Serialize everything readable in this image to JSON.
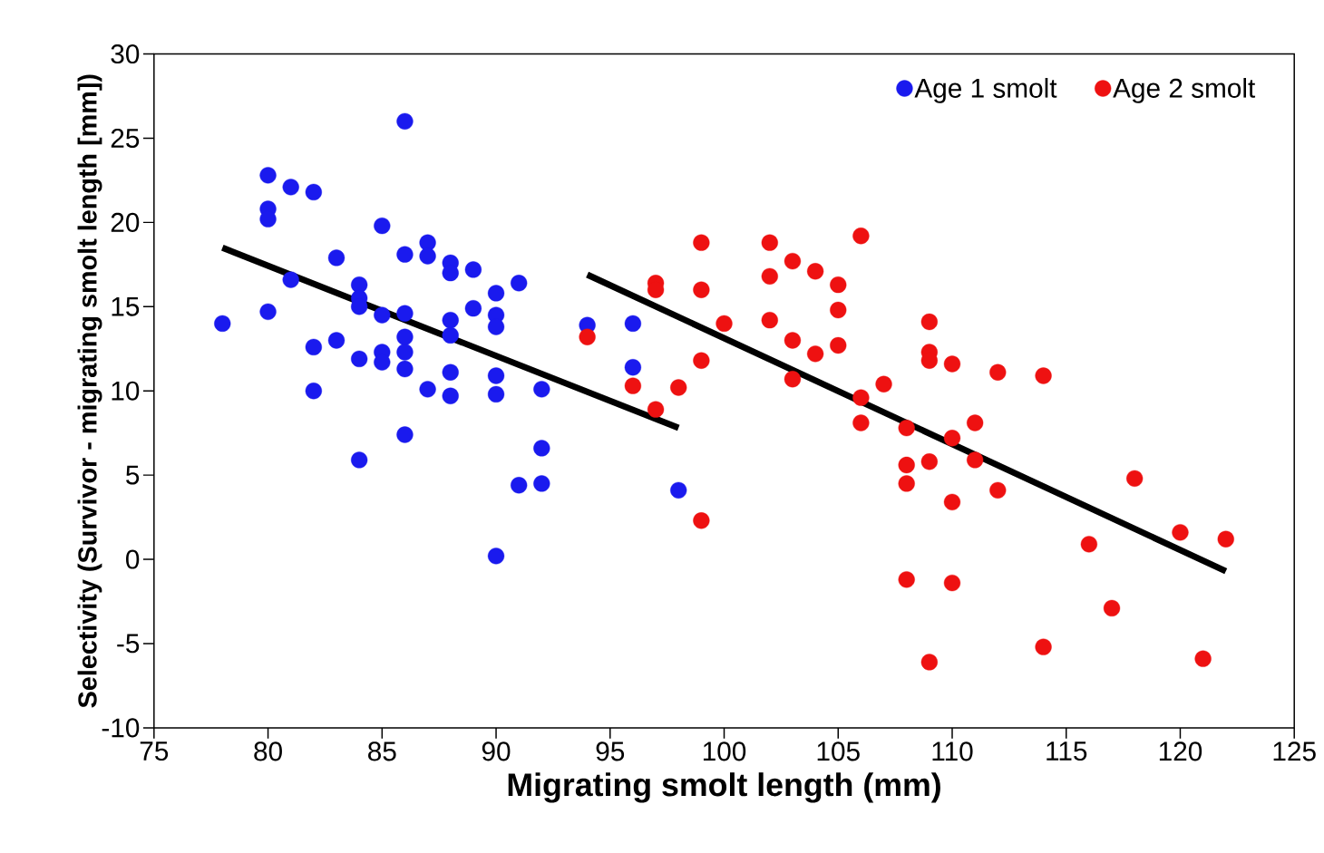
{
  "chart_data": {
    "type": "scatter",
    "xlabel": "Migrating smolt length (mm)",
    "ylabel": "Selectivity (Survivor - migrating smolt length [mm])",
    "xlim": [
      75,
      125
    ],
    "xticks": [
      75,
      80,
      85,
      90,
      95,
      100,
      105,
      110,
      115,
      120,
      125
    ],
    "ylim": [
      -10,
      30
    ],
    "yticks": [
      -10,
      -5,
      0,
      5,
      10,
      15,
      20,
      25,
      30
    ],
    "legend": "top right",
    "marker": "circle",
    "grid": false,
    "series": [
      {
        "name": "Age 1 smolt",
        "color": "#1a1aee",
        "x": [
          78,
          80,
          80,
          80,
          80,
          81,
          81,
          82,
          82,
          82,
          83,
          83,
          84,
          84,
          84,
          84,
          84,
          85,
          85,
          85,
          85,
          86,
          86,
          86,
          86,
          86,
          86,
          86,
          87,
          87,
          87,
          88,
          88,
          88,
          88,
          88,
          88,
          89,
          89,
          90,
          90,
          90,
          90,
          90,
          90,
          91,
          91,
          92,
          92,
          92,
          94,
          96,
          96,
          98
        ],
        "values": [
          14.0,
          22.8,
          20.8,
          20.2,
          14.7,
          22.1,
          16.6,
          21.8,
          12.6,
          10.0,
          13.0,
          17.9,
          16.3,
          15.5,
          15.0,
          11.9,
          5.9,
          19.8,
          14.5,
          12.3,
          11.7,
          26.0,
          18.1,
          14.6,
          13.2,
          12.3,
          11.3,
          7.4,
          18.8,
          18.0,
          10.1,
          17.6,
          17.0,
          14.2,
          13.3,
          11.1,
          9.7,
          17.2,
          14.9,
          15.8,
          14.5,
          13.8,
          10.9,
          9.8,
          0.2,
          16.4,
          4.4,
          10.1,
          6.6,
          4.5,
          13.9,
          14.0,
          11.4,
          4.1
        ]
      },
      {
        "name": "Age 2 smolt",
        "color": "#ee1111",
        "x": [
          94,
          96,
          97,
          97,
          97,
          98,
          99,
          99,
          99,
          99,
          100,
          102,
          102,
          102,
          103,
          103,
          103,
          104,
          104,
          105,
          105,
          105,
          106,
          106,
          106,
          107,
          108,
          108,
          108,
          108,
          109,
          109,
          109,
          109,
          109,
          110,
          110,
          110,
          110,
          111,
          111,
          112,
          112,
          114,
          114,
          116,
          117,
          118,
          120,
          121,
          122
        ],
        "values": [
          13.2,
          10.3,
          16.4,
          16.0,
          8.9,
          10.2,
          18.8,
          16.0,
          11.8,
          2.3,
          14.0,
          18.8,
          16.8,
          14.2,
          17.7,
          13.0,
          10.7,
          17.1,
          12.2,
          16.3,
          14.8,
          12.7,
          19.2,
          9.6,
          8.1,
          10.4,
          7.8,
          5.6,
          4.5,
          -1.2,
          14.1,
          12.3,
          11.8,
          5.8,
          -6.1,
          11.6,
          7.2,
          3.4,
          -1.4,
          8.1,
          5.9,
          11.1,
          4.1,
          10.9,
          -5.2,
          0.9,
          -2.9,
          4.8,
          1.6,
          -5.9,
          1.2
        ]
      },
      {
        "type": "line",
        "marker": "none",
        "color": "#000000",
        "x": [
          78,
          98
        ],
        "values": [
          18.5,
          7.8
        ]
      },
      {
        "type": "line",
        "marker": "none",
        "color": "#000000",
        "x": [
          94,
          122
        ],
        "values": [
          16.9,
          -0.7
        ]
      }
    ]
  }
}
